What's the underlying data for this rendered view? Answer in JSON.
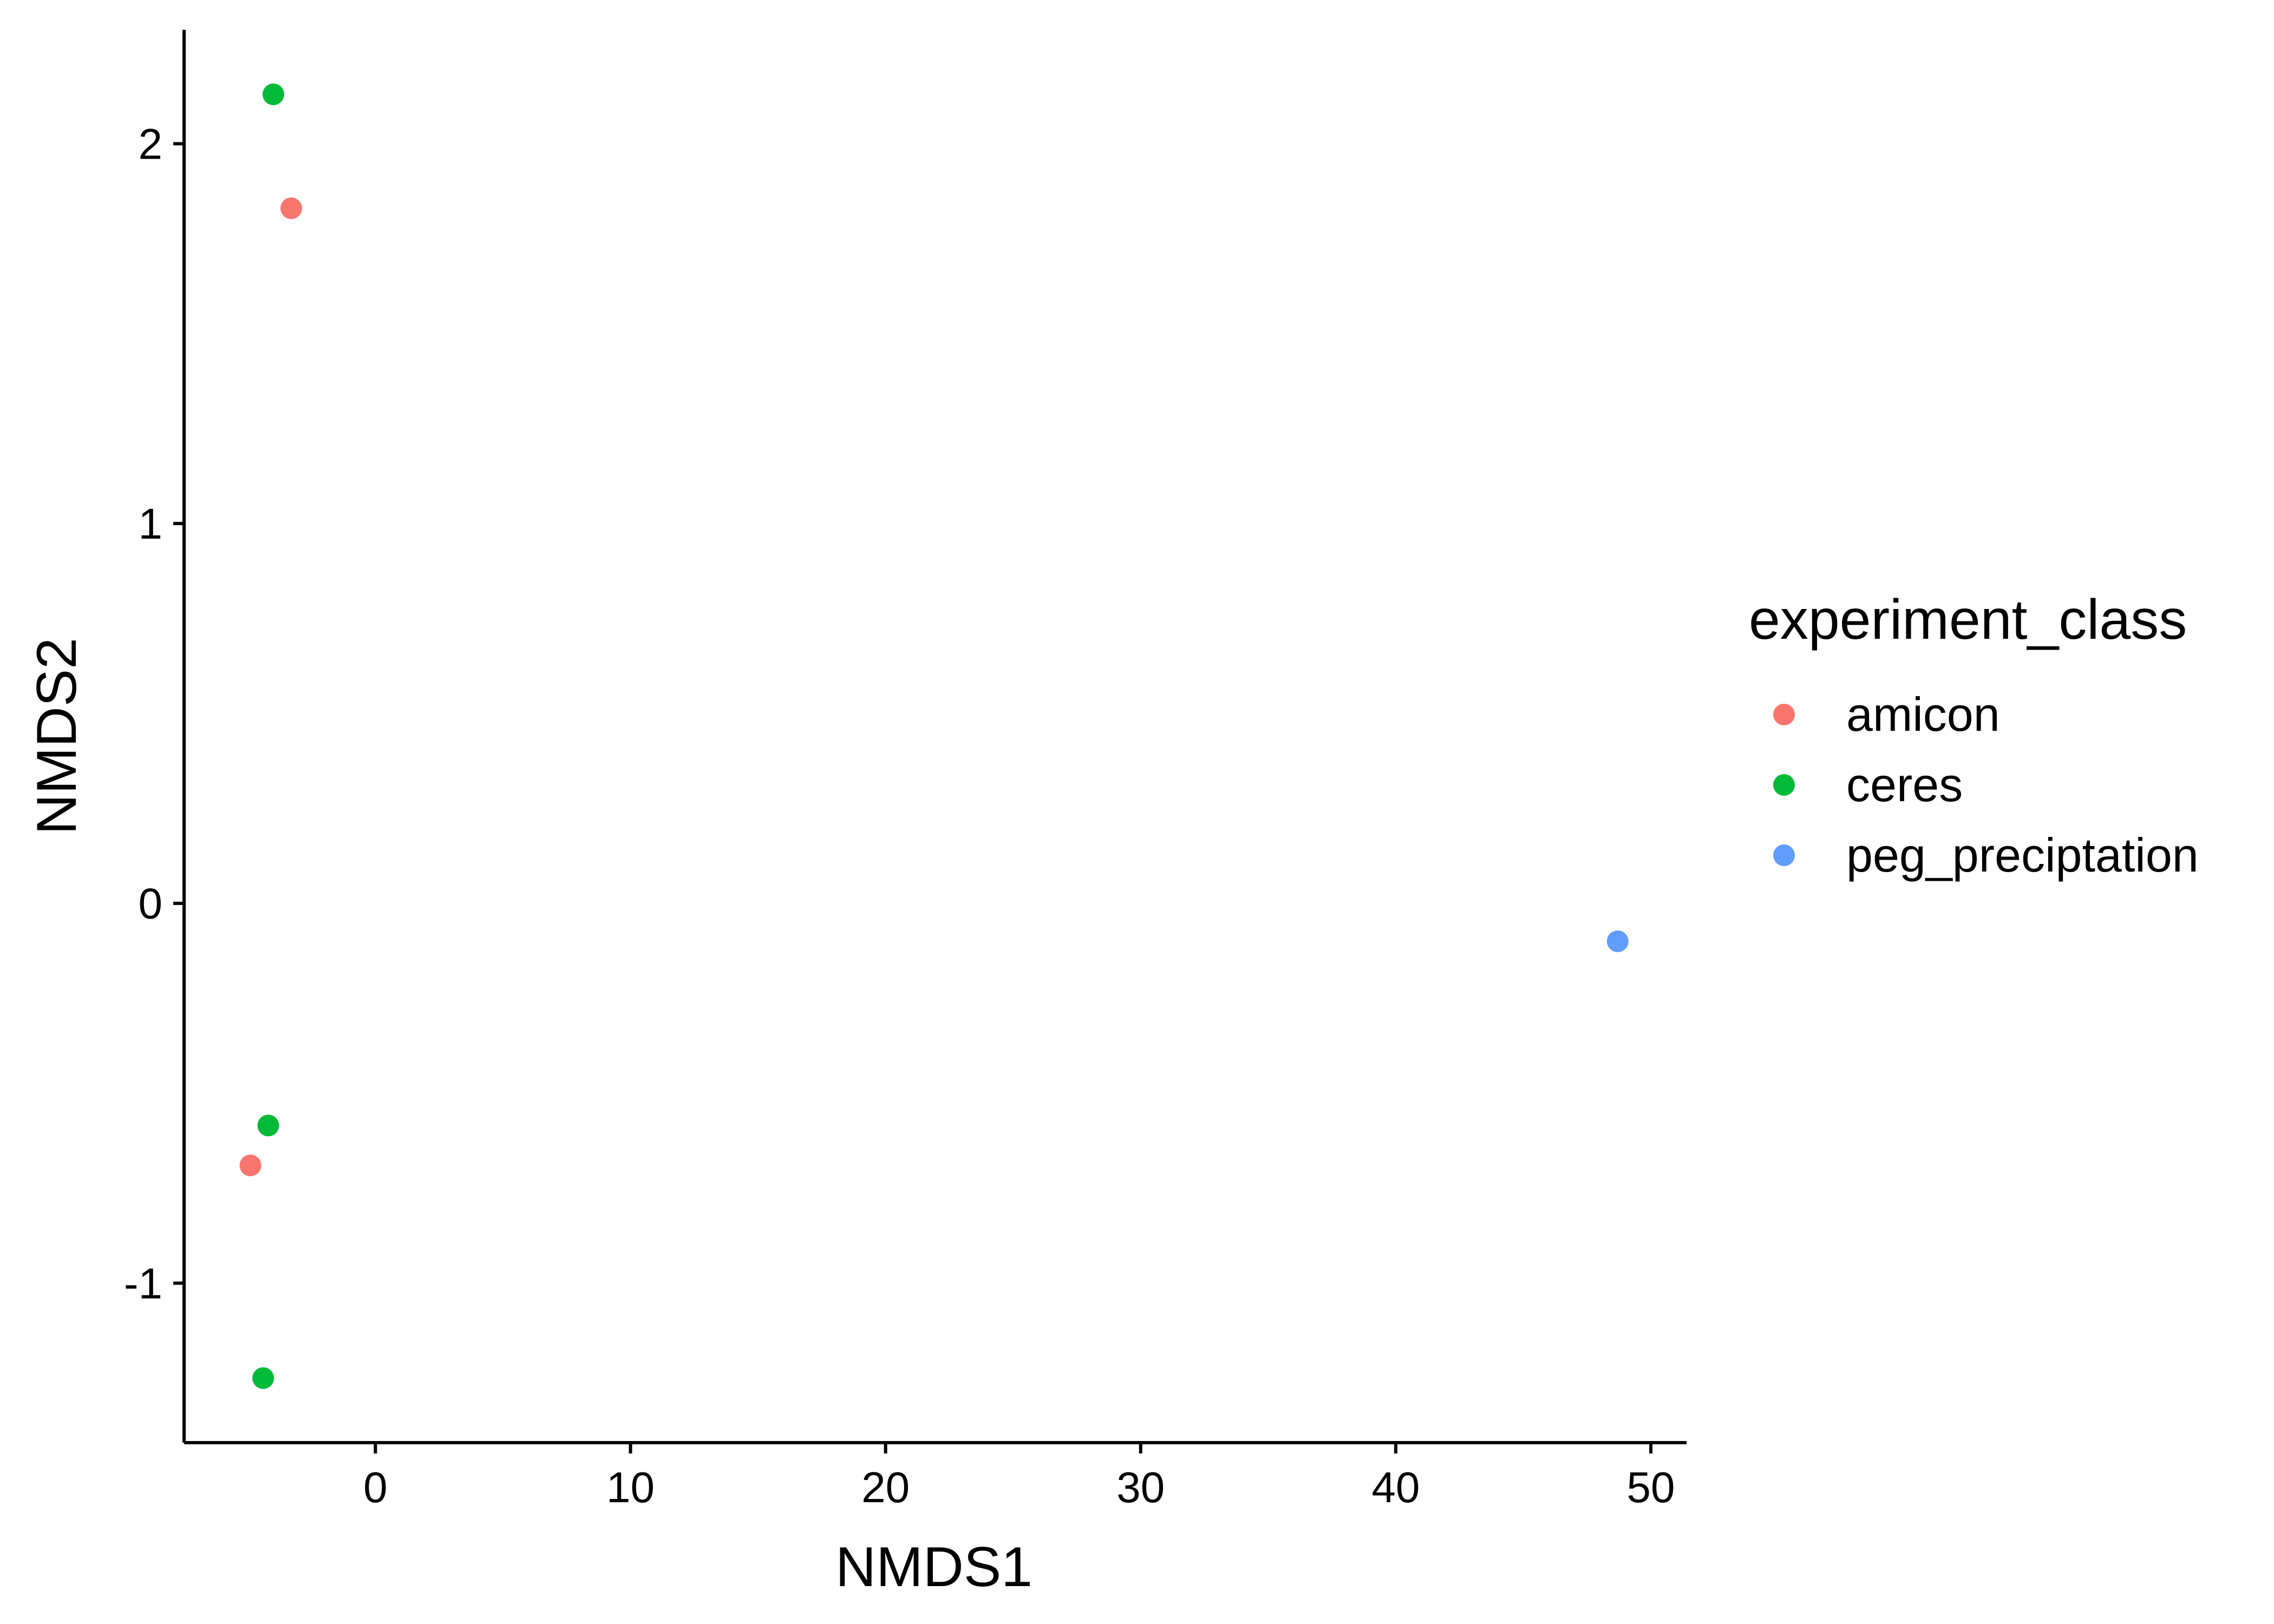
{
  "chart_data": {
    "type": "scatter",
    "title": "",
    "xlabel": "NMDS1",
    "ylabel": "NMDS2",
    "xlim": [
      -7.5,
      51.4
    ],
    "ylim": [
      -1.42,
      2.3
    ],
    "x_ticks": [
      0,
      10,
      20,
      30,
      40,
      50
    ],
    "y_ticks": [
      -1,
      0,
      1,
      2
    ],
    "x_tick_labels": [
      "0",
      "10",
      "20",
      "30",
      "40",
      "50"
    ],
    "y_tick_labels": [
      "-1",
      "0",
      "1",
      "2"
    ],
    "grid": false,
    "legend_placement": "right",
    "legend_title": "experiment_class",
    "series": [
      {
        "name": "amicon",
        "color": "#F8766D",
        "points": [
          {
            "x": -3.3,
            "y": 1.83
          },
          {
            "x": -4.9,
            "y": -0.69
          }
        ]
      },
      {
        "name": "ceres",
        "color": "#00BA38",
        "points": [
          {
            "x": -4.0,
            "y": 2.13
          },
          {
            "x": -4.2,
            "y": -0.585
          },
          {
            "x": -4.4,
            "y": -1.25
          }
        ]
      },
      {
        "name": "peg_preciptation",
        "color": "#619CFF",
        "points": [
          {
            "x": 48.7,
            "y": -0.1
          }
        ]
      }
    ]
  }
}
